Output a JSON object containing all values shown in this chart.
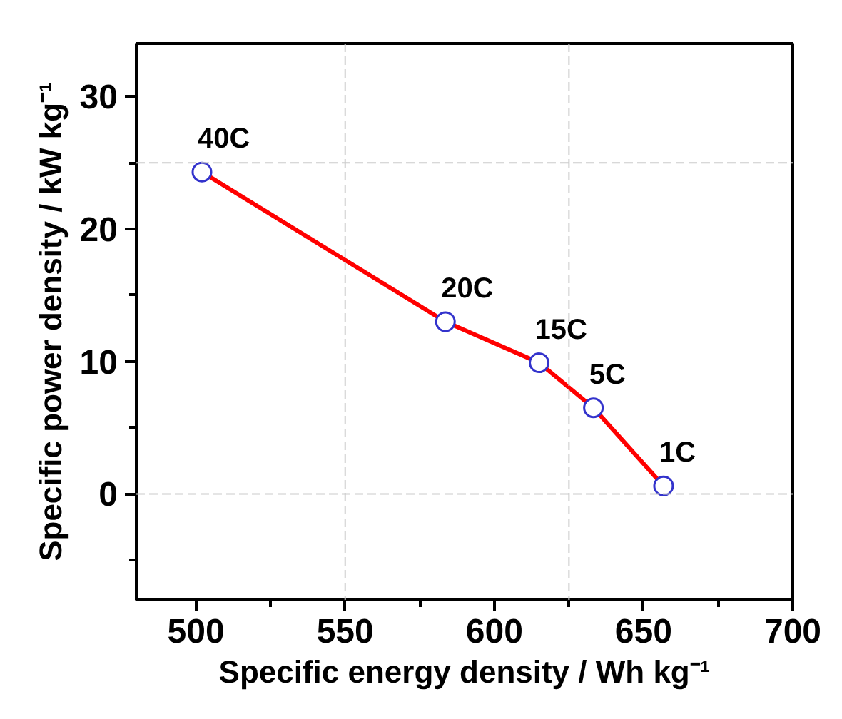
{
  "chart_data": {
    "type": "line",
    "xlabel": "Specific energy density / Wh kg⁻¹",
    "ylabel": "Specific power density / kW kg⁻¹",
    "x": [
      502,
      583.6,
      615,
      633.2,
      656.7
    ],
    "series": [
      {
        "color": "#ff0000",
        "colors": [
          "#3333cc",
          "#3333cc",
          "#3333cc",
          "#3333cc",
          "#3333cc"
        ],
        "values": [
          24.3,
          13.0,
          9.9,
          6.5,
          0.6
        ]
      }
    ],
    "xlim": [
      480,
      700
    ],
    "ylim": [
      -8,
      34
    ],
    "xticks": [
      500,
      550,
      600,
      650,
      700
    ],
    "yticks": [
      0,
      10,
      20,
      30
    ],
    "marker": "circle",
    "line_style": "solid",
    "ref_lines": [
      {
        "axis": "x",
        "value": 550,
        "color": "#cccccc",
        "line_style": "dashed"
      },
      {
        "axis": "x",
        "value": 625,
        "color": "#cccccc",
        "line_style": "dashed"
      },
      {
        "axis": "y",
        "value": 0,
        "color": "#cccccc",
        "line_style": "dashed"
      },
      {
        "axis": "y",
        "value": 25,
        "color": "#cccccc",
        "line_style": "dashed"
      }
    ],
    "annotations": [
      {
        "text": "40C",
        "x": 502,
        "y": 24.3
      },
      {
        "text": "20C",
        "x": 583.6,
        "y": 13.0
      },
      {
        "text": "15C",
        "x": 615,
        "y": 9.9
      },
      {
        "text": "5C",
        "x": 633.2,
        "y": 6.5
      },
      {
        "text": "1C",
        "x": 656.7,
        "y": 0.6
      }
    ]
  }
}
